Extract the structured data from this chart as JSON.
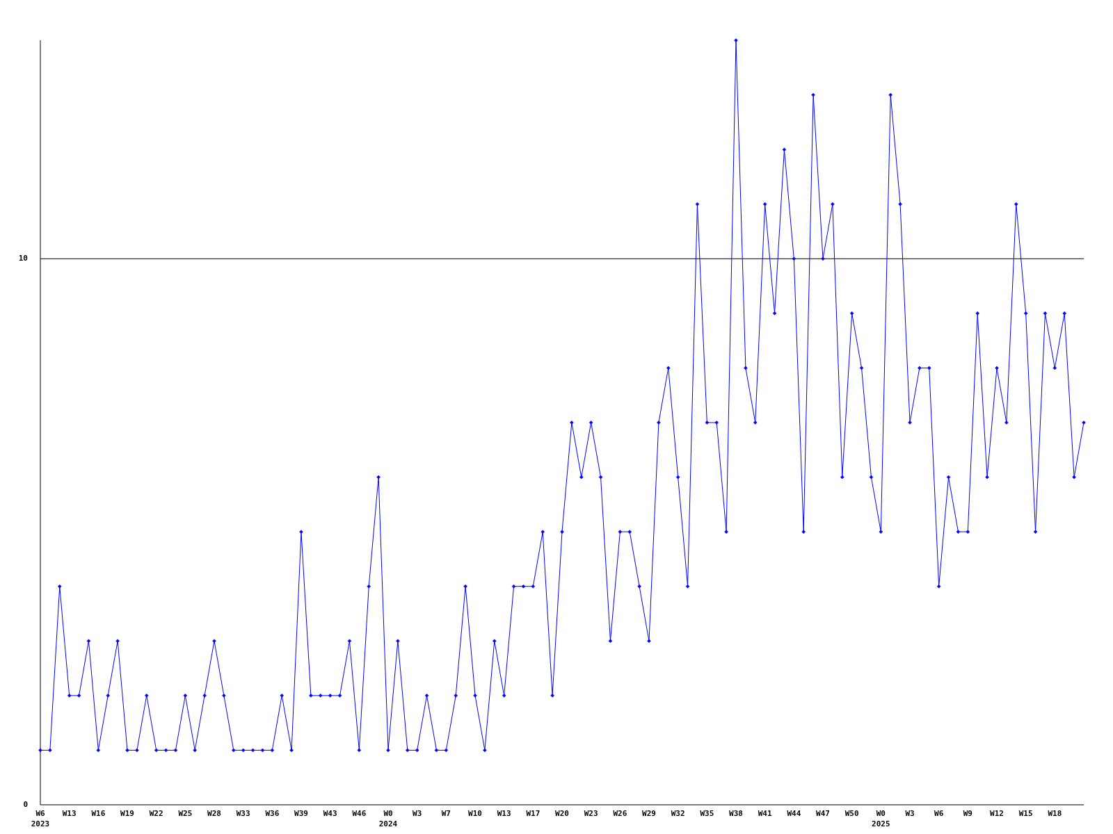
{
  "chart_data": {
    "type": "line",
    "categories": [
      "W6\n2023",
      null,
      null,
      "W13",
      null,
      null,
      "W16",
      null,
      null,
      "W19",
      null,
      null,
      "W22",
      null,
      null,
      "W25",
      null,
      null,
      "W28",
      null,
      null,
      "W33",
      null,
      null,
      "W36",
      null,
      null,
      "W39",
      null,
      null,
      "W43",
      null,
      null,
      "W46",
      null,
      null,
      "W0\n2024",
      null,
      null,
      "W3",
      null,
      null,
      "W7",
      null,
      null,
      "W10",
      null,
      null,
      "W13",
      null,
      null,
      "W17",
      null,
      null,
      "W20",
      null,
      null,
      "W23",
      null,
      null,
      "W26",
      null,
      null,
      "W29",
      null,
      null,
      "W32",
      null,
      null,
      "W35",
      null,
      null,
      "W38",
      null,
      null,
      "W41",
      null,
      null,
      "W44",
      null,
      null,
      "W47",
      null,
      null,
      "W50",
      null,
      null,
      "W0\n2025",
      null,
      null,
      "W3",
      null,
      null,
      "W6",
      null,
      null,
      "W9",
      null,
      null,
      "W12",
      null,
      null,
      "W15",
      null,
      null,
      "W18",
      null,
      null,
      null
    ],
    "series": [
      {
        "color": "#0000ff",
        "values": [
          1,
          1,
          4,
          2,
          2,
          3,
          1,
          2,
          3,
          1,
          1,
          2,
          1,
          1,
          1,
          2,
          1,
          2,
          3,
          2,
          1,
          1,
          1,
          1,
          1,
          2,
          1,
          5,
          2,
          2,
          2,
          2,
          3,
          1,
          4,
          6,
          1,
          3,
          1,
          1,
          2,
          1,
          1,
          2,
          4,
          2,
          1,
          3,
          2,
          4,
          4,
          4,
          5,
          2,
          5,
          7,
          6,
          7,
          6,
          3,
          5,
          5,
          4,
          3,
          7,
          8,
          6,
          4,
          11,
          7,
          7,
          5,
          14,
          8,
          7,
          11,
          9,
          12,
          10,
          5,
          13,
          10,
          11,
          6,
          9,
          8,
          6,
          5,
          13,
          11,
          7,
          8,
          8,
          4,
          6,
          5,
          5,
          9,
          6,
          8,
          7,
          11,
          9,
          5,
          9,
          8,
          9,
          6,
          7
        ]
      }
    ],
    "ylim": [
      0,
      14
    ],
    "yticks": [
      0,
      10
    ],
    "grid": "y",
    "marker": "diamond"
  }
}
